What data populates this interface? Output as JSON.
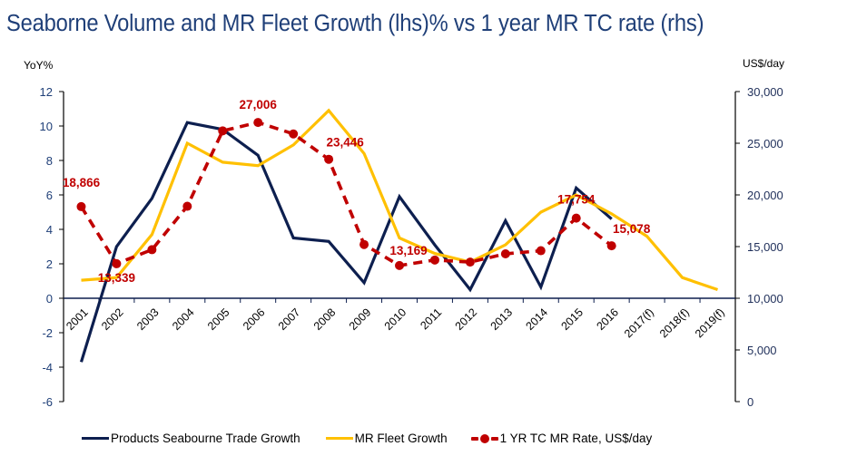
{
  "title": "Seaborne Volume and MR Fleet Growth (lhs)%  vs 1 year MR TC rate (rhs)",
  "colors": {
    "title": "#1f3f78",
    "trade": "#0d1f4f",
    "fleet": "#ffc000",
    "tc": "#c00000",
    "axis": "#000000",
    "zero_line": "#0d1f4f"
  },
  "chart_data": {
    "type": "line",
    "title": "Seaborne Volume and MR Fleet Growth (lhs)%  vs 1 year MR TC rate (rhs)",
    "xlabel": "",
    "ylabel": "YoY%",
    "ylabel_right": "US$/day",
    "categories": [
      "2001",
      "2002",
      "2003",
      "2004",
      "2005",
      "2006",
      "2007",
      "2008",
      "2009",
      "2010",
      "2011",
      "2012",
      "2013",
      "2014",
      "2015",
      "2016",
      "2017(f)",
      "2018(f)",
      "2019(f)"
    ],
    "ylim": [
      -6,
      12
    ],
    "yticks": [
      -6,
      -4,
      -2,
      0,
      2,
      4,
      6,
      8,
      10,
      12
    ],
    "ytick_labels": [
      "-6",
      "-4",
      "-2",
      "0",
      "2",
      "4",
      "6",
      "8",
      "10",
      "12"
    ],
    "ylim_right": [
      0,
      30000
    ],
    "yticks_right": [
      0,
      5000,
      10000,
      15000,
      20000,
      25000,
      30000
    ],
    "ytick_labels_right": [
      "0",
      "5,000",
      "10,000",
      "15,000",
      "20,000",
      "25,000",
      "30,000"
    ],
    "grid": false,
    "legend_position": "bottom",
    "series": [
      {
        "name": "Products Seabourne Trade Growth",
        "axis": "left",
        "style": "solid",
        "values": [
          -3.7,
          3.0,
          5.8,
          10.2,
          9.8,
          8.3,
          3.5,
          3.3,
          0.9,
          5.9,
          3.1,
          0.5,
          4.5,
          0.65,
          6.4,
          4.6,
          null,
          null,
          null
        ]
      },
      {
        "name": "MR Fleet Growth",
        "axis": "left",
        "style": "solid",
        "values": [
          1.05,
          1.2,
          3.7,
          9.0,
          7.9,
          7.7,
          8.9,
          10.9,
          8.4,
          3.5,
          2.6,
          2.1,
          3.1,
          5.0,
          6.0,
          4.9,
          3.6,
          1.2,
          0.5
        ]
      },
      {
        "name": "1 YR TC MR Rate, US$/day",
        "axis": "right",
        "style": "dashed-markers",
        "values": [
          18866,
          13339,
          14700,
          18900,
          26200,
          27006,
          25900,
          23446,
          15200,
          13169,
          13700,
          13500,
          14300,
          14600,
          17754,
          15078,
          null,
          null,
          null
        ]
      }
    ],
    "annotations": [
      {
        "series": 2,
        "index": 0,
        "text": "18,866"
      },
      {
        "series": 2,
        "index": 1,
        "text": "13,339"
      },
      {
        "series": 2,
        "index": 5,
        "text": "27,006"
      },
      {
        "series": 2,
        "index": 7,
        "text": "23,446"
      },
      {
        "series": 2,
        "index": 9,
        "text": "13,169"
      },
      {
        "series": 2,
        "index": 14,
        "text": "17,754"
      },
      {
        "series": 2,
        "index": 15,
        "text": "15,078"
      }
    ]
  },
  "legend": [
    {
      "label": "Products Seabourne Trade Growth",
      "key": "trade"
    },
    {
      "label": "MR Fleet Growth",
      "key": "fleet"
    },
    {
      "label": "1 YR TC MR Rate, US$/day",
      "key": "tc"
    }
  ]
}
